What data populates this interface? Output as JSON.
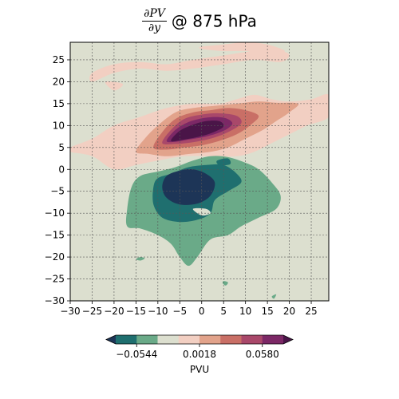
{
  "title": {
    "numerator": "∂PV",
    "denominator": "∂y",
    "text": "@ 875 hPa"
  },
  "chart_data": {
    "type": "heatmap",
    "title": "∂PV/∂y @ 875 hPa",
    "x_ticks": [
      -30,
      -25,
      -20,
      -15,
      -10,
      -5,
      0,
      5,
      10,
      15,
      20,
      25
    ],
    "y_ticks": [
      -30,
      -25,
      -20,
      -15,
      -10,
      -5,
      0,
      5,
      10,
      15,
      20,
      25
    ],
    "x_tick_labels": [
      "−30",
      "−25",
      "−20",
      "−15",
      "−10",
      "−5",
      "0",
      "5",
      "10",
      "15",
      "20",
      "25"
    ],
    "y_tick_labels": [
      "−30",
      "−25",
      "−20",
      "−15",
      "−10",
      "−5",
      "0",
      "5",
      "10",
      "15",
      "20",
      "25"
    ],
    "xlim": [
      -30,
      29
    ],
    "ylim": [
      -30,
      29
    ],
    "grid": true,
    "colorbar": {
      "label": "PVU",
      "tick_labels": [
        "−0.0544",
        "0.0018",
        "0.0580"
      ],
      "tick_values": [
        -0.0544,
        0.0018,
        0.058
      ],
      "colors": [
        "#1d3557",
        "#1f6f6f",
        "#6aaa88",
        "#dcdfcf",
        "#f2cfc2",
        "#e2a38b",
        "#c96f66",
        "#a9486a",
        "#7c2866",
        "#4a1548"
      ],
      "extend": "both"
    },
    "fields": {
      "background": "#dcdfcf",
      "positive_levels": [
        {
          "level": 1,
          "color": "#f2cfc2",
          "polygons": [
            [
              [
                -30,
                5
              ],
              [
                -25,
                7
              ],
              [
                -20,
                10
              ],
              [
                -14,
                12
              ],
              [
                -8,
                14
              ],
              [
                -2,
                15
              ],
              [
                4,
                15
              ],
              [
                8,
                16
              ],
              [
                12,
                17
              ],
              [
                16,
                16
              ],
              [
                20,
                15.5
              ],
              [
                25,
                16
              ],
              [
                29,
                17
              ],
              [
                29,
                12
              ],
              [
                24,
                10
              ],
              [
                20,
                8
              ],
              [
                16,
                6
              ],
              [
                12,
                4
              ],
              [
                8,
                3
              ],
              [
                2,
                3
              ],
              [
                -4,
                3
              ],
              [
                -10,
                2
              ],
              [
                -15,
                1
              ],
              [
                -20,
                0
              ],
              [
                -25,
                3
              ],
              [
                -30,
                4
              ]
            ],
            [
              [
                -25,
                20
              ],
              [
                -20,
                22
              ],
              [
                -14,
                23
              ],
              [
                -8,
                22.5
              ],
              [
                -2,
                23
              ],
              [
                5,
                24
              ],
              [
                12,
                25
              ],
              [
                18,
                24.5
              ],
              [
                20,
                26
              ],
              [
                18,
                27
              ],
              [
                12,
                27
              ],
              [
                5,
                26
              ],
              [
                -2,
                25
              ],
              [
                -8,
                24
              ],
              [
                -14,
                24.5
              ],
              [
                -20,
                24
              ],
              [
                -25,
                22
              ]
            ],
            [
              [
                -20,
                18
              ],
              [
                -18,
                19.5
              ],
              [
                -22,
                20
              ]
            ],
            [
              [
                0,
                28
              ],
              [
                5,
                28.5
              ],
              [
                10,
                29
              ],
              [
                15,
                28.5
              ],
              [
                19,
                27
              ],
              [
                15,
                26.5
              ],
              [
                10,
                27
              ],
              [
                5,
                27
              ],
              [
                0,
                27.5
              ]
            ]
          ]
        },
        {
          "level": 2,
          "color": "#e2a38b",
          "polygons": [
            [
              [
                -15,
                4
              ],
              [
                -13,
                7
              ],
              [
                -10,
                10
              ],
              [
                -6,
                13
              ],
              [
                -2,
                14
              ],
              [
                3,
                14.5
              ],
              [
                8,
                15
              ],
              [
                13,
                15.5
              ],
              [
                17,
                15.2
              ],
              [
                22,
                15
              ],
              [
                20,
                13
              ],
              [
                17,
                11
              ],
              [
                14,
                9
              ],
              [
                10,
                7
              ],
              [
                6,
                5
              ],
              [
                2,
                4
              ],
              [
                -3,
                3.5
              ],
              [
                -8,
                3
              ],
              [
                -12,
                3.5
              ]
            ]
          ]
        },
        {
          "level": 3,
          "color": "#c96f66",
          "polygons": [
            [
              [
                -11,
                5
              ],
              [
                -9,
                8.5
              ],
              [
                -6,
                11.5
              ],
              [
                -2,
                13
              ],
              [
                2,
                13.5
              ],
              [
                6,
                14
              ],
              [
                10,
                13.5
              ],
              [
                13,
                12.2
              ],
              [
                11,
                10
              ],
              [
                8,
                8
              ],
              [
                4,
                6.5
              ],
              [
                0,
                5.5
              ],
              [
                -4,
                5
              ],
              [
                -8,
                4.5
              ]
            ]
          ]
        },
        {
          "level": 4,
          "color": "#a9486a",
          "polygons": [
            [
              [
                -9,
                6
              ],
              [
                -7,
                9
              ],
              [
                -4,
                11.5
              ],
              [
                0,
                12.5
              ],
              [
                4,
                12.8
              ],
              [
                8,
                12.2
              ],
              [
                9,
                10.5
              ],
              [
                6,
                8.5
              ],
              [
                2,
                7
              ],
              [
                -2,
                6.2
              ],
              [
                -6,
                5.8
              ]
            ]
          ]
        },
        {
          "level": 5,
          "color": "#7c2866",
          "polygons": [
            [
              [
                -8,
                6.5
              ],
              [
                -6,
                9
              ],
              [
                -3,
                10.8
              ],
              [
                1,
                11.8
              ],
              [
                5,
                11.8
              ],
              [
                7,
                10.5
              ],
              [
                5,
                8.8
              ],
              [
                1,
                7.5
              ],
              [
                -3,
                6.8
              ],
              [
                -6,
                6.3
              ]
            ]
          ]
        },
        {
          "level": 6,
          "color": "#4a1548",
          "polygons": [
            [
              [
                -7,
                6.5
              ],
              [
                -5,
                8.8
              ],
              [
                -2,
                10.2
              ],
              [
                1,
                11
              ],
              [
                4,
                11
              ],
              [
                5,
                9.8
              ],
              [
                3,
                8.6
              ],
              [
                0,
                7.6
              ],
              [
                -4,
                6.8
              ]
            ]
          ]
        }
      ],
      "negative_levels": [
        {
          "level": 1,
          "color": "#6aaa88",
          "polygons": [
            [
              [
                -16,
                -4
              ],
              [
                -17,
                -9
              ],
              [
                -17,
                -13
              ],
              [
                -14,
                -13.5
              ],
              [
                -10,
                -15
              ],
              [
                -7,
                -17
              ],
              [
                -5,
                -20
              ],
              [
                -3,
                -22
              ],
              [
                -1,
                -20
              ],
              [
                2,
                -16
              ],
              [
                6,
                -15
              ],
              [
                9,
                -13
              ],
              [
                13,
                -11
              ],
              [
                17,
                -9
              ],
              [
                18,
                -6
              ],
              [
                16,
                -3
              ],
              [
                13,
                0
              ],
              [
                10,
                1.5
              ],
              [
                6,
                2.8
              ],
              [
                2,
                3
              ],
              [
                -2,
                2
              ],
              [
                -6,
                0.5
              ],
              [
                -10,
                -0.5
              ],
              [
                -14,
                -1.5
              ]
            ],
            [
              [
                -14,
                -20
              ],
              [
                -13,
                -20.3
              ],
              [
                -14,
                -20.8
              ],
              [
                -15,
                -20.5
              ]
            ],
            [
              [
                5,
                -25.5
              ],
              [
                6,
                -25.8
              ],
              [
                5.5,
                -26.5
              ],
              [
                4.8,
                -26
              ]
            ],
            [
              [
                16,
                -29
              ],
              [
                17,
                -28.5
              ],
              [
                16.5,
                -29.5
              ]
            ]
          ]
        },
        {
          "level": 2,
          "color": "#1f6f6f",
          "polygons": [
            [
              [
                -11,
                -4
              ],
              [
                -11,
                -8
              ],
              [
                -9,
                -11
              ],
              [
                -5,
                -12
              ],
              [
                -1,
                -11.5
              ],
              [
                2,
                -10
              ],
              [
                3,
                -7
              ],
              [
                6,
                -5
              ],
              [
                9,
                -3
              ],
              [
                8,
                -1
              ],
              [
                5,
                1
              ],
              [
                1,
                1
              ],
              [
                -3,
                0.5
              ],
              [
                -7,
                -1
              ],
              [
                -10,
                -2
              ]
            ],
            [
              [
                3.5,
                2
              ],
              [
                6,
                2.5
              ],
              [
                6.5,
                1.2
              ],
              [
                4,
                1
              ]
            ]
          ]
        },
        {
          "level": 3,
          "color": "#1d3557",
          "polygons": [
            [
              [
                -9,
                -4
              ],
              [
                -8,
                -6.5
              ],
              [
                -5,
                -8
              ],
              [
                -1,
                -7.8
              ],
              [
                2,
                -6
              ],
              [
                3,
                -3
              ],
              [
                1,
                -1
              ],
              [
                -2,
                0
              ],
              [
                -5,
                -0.3
              ],
              [
                -8,
                -1.5
              ]
            ]
          ]
        }
      ],
      "neutral_patches": [
        {
          "color": "#dcdfcf",
          "polygons": [
            [
              [
                -2,
                -9
              ],
              [
                0,
                -10.5
              ],
              [
                2,
                -10
              ],
              [
                1,
                -9
              ]
            ]
          ]
        }
      ]
    }
  }
}
